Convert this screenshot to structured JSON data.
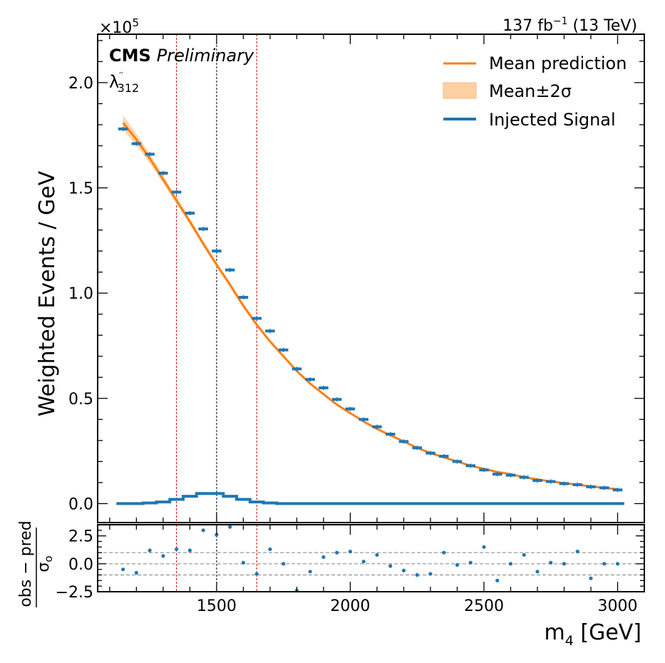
{
  "chart_data": {
    "type": "line",
    "x_unit_label": "m",
    "x_unit_sub": "4",
    "x_unit_tail": " [GeV]",
    "ylabel": "Weighted Events / GeV",
    "y_multiplier": "×10",
    "y_multiplier_exp": "5",
    "lumi": "137 fb",
    "lumi_exp": "−1",
    "lumi_tail": " (13 TeV)",
    "experiment": "CMS",
    "experiment_tag": "Preliminary",
    "coupling_base": "λ",
    "coupling_sup": "′′",
    "coupling_sub": "312",
    "xlim": [
      1055,
      3100
    ],
    "ylim": [
      -0.09,
      2.23
    ],
    "x_ticks": [
      1500,
      2000,
      2500,
      3000
    ],
    "x_tick_labels": [
      "1500",
      "2000",
      "2500",
      "3000"
    ],
    "y_ticks": [
      0.0,
      0.5,
      1.0,
      1.5,
      2.0
    ],
    "y_tick_labels": [
      "0.0",
      "0.5",
      "1.0",
      "1.5",
      "2.0"
    ],
    "legend_position": "top-right",
    "legend": [
      {
        "label": "Mean prediction",
        "style": "line",
        "color": "#ff7f0e"
      },
      {
        "label": "Mean±2σ",
        "style": "band",
        "color": "#fdd0a2"
      },
      {
        "label": "Injected Signal",
        "style": "thick-line",
        "color": "#1f77b4"
      }
    ],
    "colors": {
      "prediction": "#ff7f0e",
      "band": "#fdd0a2",
      "data": "#1f77b4",
      "signal": "#1f77b4",
      "window": "#cc0000",
      "center": "#000000"
    },
    "vertical_lines": [
      {
        "x": 1350,
        "color": "#cc0000"
      },
      {
        "x": 1500,
        "color": "#000000"
      },
      {
        "x": 1650,
        "color": "#cc0000"
      }
    ],
    "bin_width": 50,
    "bin_centers": [
      1150,
      1200,
      1250,
      1300,
      1350,
      1400,
      1450,
      1500,
      1550,
      1600,
      1650,
      1700,
      1750,
      1800,
      1850,
      1900,
      1950,
      2000,
      2050,
      2100,
      2150,
      2200,
      2250,
      2300,
      2350,
      2400,
      2450,
      2500,
      2550,
      2600,
      2650,
      2700,
      2750,
      2800,
      2850,
      2900,
      2950,
      3000
    ],
    "observed": [
      1.78,
      1.71,
      1.66,
      1.57,
      1.48,
      1.38,
      1.305,
      1.2,
      1.11,
      0.98,
      0.88,
      0.82,
      0.73,
      0.64,
      0.59,
      0.55,
      0.495,
      0.45,
      0.4,
      0.365,
      0.33,
      0.295,
      0.265,
      0.24,
      0.225,
      0.2,
      0.18,
      0.16,
      0.14,
      0.135,
      0.125,
      0.11,
      0.105,
      0.095,
      0.09,
      0.08,
      0.075,
      0.065
    ],
    "prediction": [
      1.81,
      1.73,
      1.64,
      1.54,
      1.44,
      1.34,
      1.235,
      1.135,
      1.04,
      0.94,
      0.85,
      0.77,
      0.7,
      0.63,
      0.57,
      0.52,
      0.47,
      0.43,
      0.39,
      0.355,
      0.325,
      0.295,
      0.265,
      0.24,
      0.22,
      0.2,
      0.18,
      0.165,
      0.15,
      0.14,
      0.125,
      0.115,
      0.105,
      0.097,
      0.09,
      0.082,
      0.075,
      0.068
    ],
    "band_halfwidth": [
      0.035,
      0.028,
      0.022,
      0.018,
      0.016,
      0.014,
      0.013,
      0.012,
      0.011,
      0.01,
      0.009,
      0.008,
      0.007,
      0.006,
      0.006,
      0.005,
      0.005,
      0.004,
      0.004,
      0.004,
      0.004,
      0.003,
      0.003,
      0.003,
      0.003,
      0.003,
      0.003,
      0.003,
      0.003,
      0.003,
      0.003,
      0.003,
      0.003,
      0.003,
      0.003,
      0.003,
      0.003,
      0.003
    ],
    "signal": [
      0.0,
      0.0,
      0.003,
      0.008,
      0.02,
      0.035,
      0.048,
      0.048,
      0.035,
      0.02,
      0.008,
      0.003,
      0.0,
      0.0,
      0.0,
      0.0,
      0.0,
      0.0,
      0.0,
      0.0,
      0.0,
      0.0,
      0.0,
      0.0,
      0.0,
      0.0,
      0.0,
      0.0,
      0.0,
      0.0,
      0.0,
      0.0,
      0.0,
      0.0,
      0.0,
      0.0,
      0.0,
      0.0
    ],
    "ratio": {
      "ylabel_num": "obs − pred",
      "ylabel_den": "σ",
      "ylabel_den_sub": "o",
      "ylim": [
        -2.5,
        3.5
      ],
      "y_ticks": [
        -2.5,
        0.0,
        2.5
      ],
      "y_tick_labels": [
        "−2.5",
        "0.0",
        "2.5"
      ],
      "reference_lines": [
        -1,
        0,
        1
      ],
      "x": [
        1150,
        1200,
        1250,
        1300,
        1350,
        1400,
        1450,
        1500,
        1550,
        1600,
        1650,
        1700,
        1750,
        1800,
        1850,
        1900,
        1950,
        2000,
        2050,
        2100,
        2150,
        2200,
        2250,
        2300,
        2350,
        2400,
        2450,
        2500,
        2550,
        2600,
        2650,
        2700,
        2750,
        2800,
        2850,
        2900,
        2950,
        3000
      ],
      "values": [
        -0.5,
        -0.8,
        1.2,
        0.7,
        1.3,
        1.2,
        3.0,
        2.6,
        3.3,
        0.1,
        -0.9,
        1.3,
        0.0,
        -2.4,
        -0.7,
        0.6,
        1.0,
        1.1,
        0.2,
        0.8,
        -0.2,
        -0.6,
        -1.0,
        -0.9,
        1.0,
        -0.1,
        0.1,
        1.5,
        -1.5,
        0.0,
        0.8,
        -0.7,
        0.1,
        0.0,
        1.1,
        -1.3,
        0.0,
        0.0
      ]
    }
  }
}
